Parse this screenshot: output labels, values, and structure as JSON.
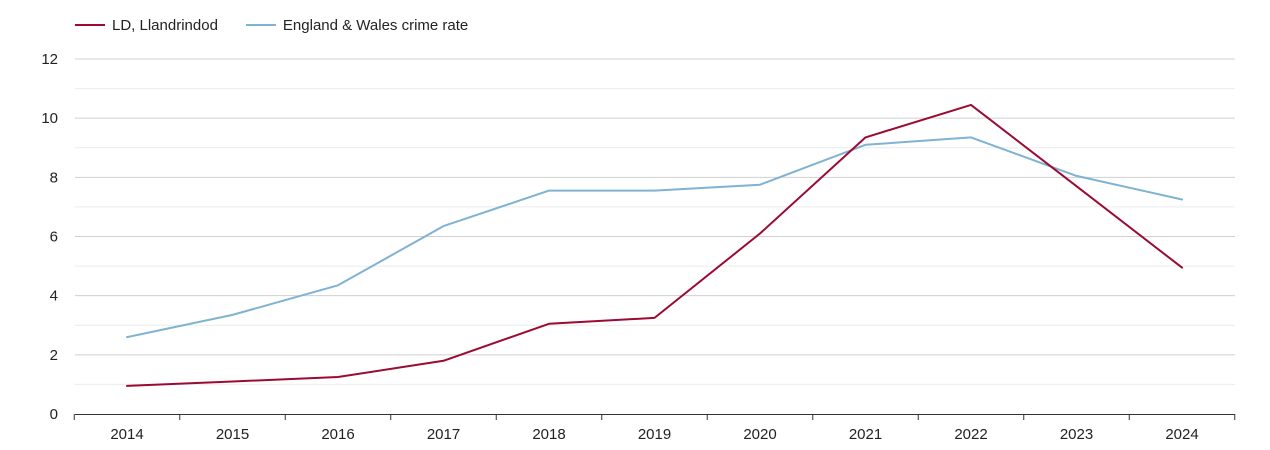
{
  "chart_data": {
    "type": "line",
    "title": "",
    "xlabel": "",
    "ylabel": "",
    "x": [
      "2014",
      "2015",
      "2016",
      "2017",
      "2018",
      "2019",
      "2020",
      "2021",
      "2022",
      "2023",
      "2024"
    ],
    "ylim": [
      0,
      12
    ],
    "yticks": [
      0,
      2,
      4,
      6,
      8,
      10,
      12
    ],
    "grid": true,
    "legend_position": "top-left",
    "series": [
      {
        "name": "LD, Llandrindod",
        "color": "#9b0a32",
        "values": [
          0.95,
          1.1,
          1.25,
          1.8,
          3.05,
          3.25,
          6.1,
          9.35,
          10.45,
          7.7,
          4.95
        ]
      },
      {
        "name": "England & Wales crime rate",
        "color": "#7fb2d3",
        "values": [
          2.6,
          3.35,
          4.35,
          6.35,
          7.55,
          7.55,
          7.75,
          9.1,
          9.35,
          8.05,
          7.25
        ]
      }
    ]
  }
}
